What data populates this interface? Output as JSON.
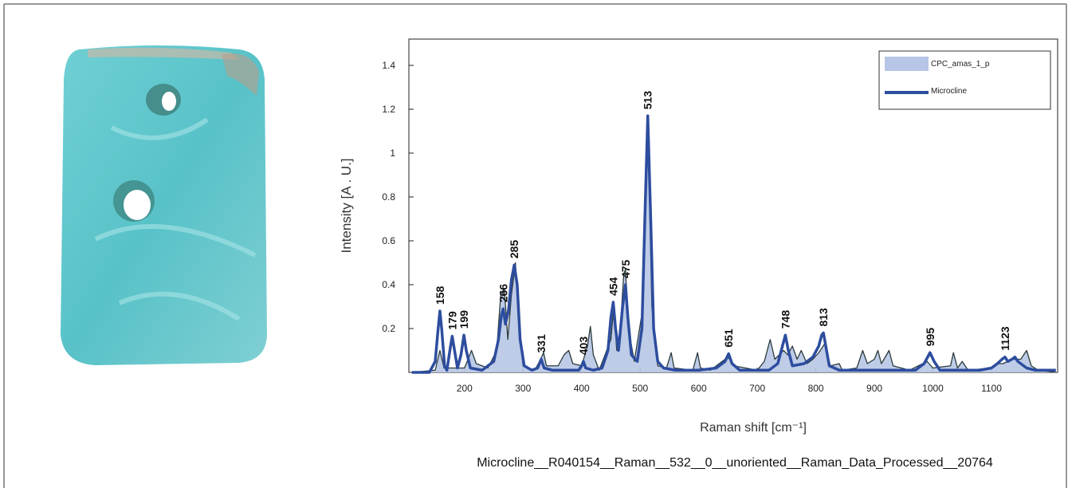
{
  "chart_data": {
    "type": "line",
    "x_label": "Raman shift [cm⁻¹]",
    "y_label": "Intensity [A . U.]",
    "caption": "Microcline__R040154__Raman__532__0__unoriented__Raman_Data_Processed__20764",
    "xlim": [
      105,
      1213
    ],
    "ylim": [
      0,
      1.52
    ],
    "xticks": [
      200,
      300,
      400,
      500,
      600,
      700,
      800,
      900,
      1000,
      1100
    ],
    "yticks": [
      0.2,
      0.4,
      0.6,
      0.8,
      1,
      1.2,
      1.4
    ],
    "legend": "upper right",
    "peak_labels": [
      158,
      179,
      199,
      266,
      285,
      331,
      403,
      454,
      475,
      513,
      651,
      748,
      813,
      995,
      1123
    ],
    "series": [
      {
        "name": "CPC_amas_1_p",
        "color": "#b7c6e6",
        "edge_color": "#2b3b3b",
        "filled": true,
        "x": [
          110,
          150,
          158,
          165,
          200,
          212,
          220,
          240,
          255,
          262,
          268,
          274,
          280,
          287,
          293,
          300,
          320,
          330,
          335,
          340,
          360,
          370,
          378,
          385,
          400,
          410,
          415,
          420,
          430,
          450,
          455,
          460,
          465,
          472,
          475,
          480,
          490,
          505,
          513,
          520,
          530,
          545,
          553,
          558,
          590,
          598,
          603,
          620,
          640,
          650,
          660,
          700,
          712,
          722,
          730,
          745,
          752,
          760,
          768,
          775,
          785,
          795,
          805,
          815,
          825,
          840,
          845,
          870,
          880,
          888,
          900,
          906,
          912,
          925,
          932,
          960,
          990,
          1000,
          1030,
          1035,
          1042,
          1050,
          1060,
          1100,
          1110,
          1120,
          1135,
          1150,
          1160,
          1168,
          1180,
          1210
        ],
        "values": [
          0,
          0.01,
          0.1,
          0.02,
          0.02,
          0.1,
          0.04,
          0.02,
          0.1,
          0.36,
          0.38,
          0.15,
          0.35,
          0.5,
          0.2,
          0.03,
          0.01,
          0.06,
          0.09,
          0.03,
          0.03,
          0.08,
          0.1,
          0.04,
          0.03,
          0.12,
          0.21,
          0.08,
          0.01,
          0.15,
          0.3,
          0.1,
          0.15,
          0.45,
          0.47,
          0.2,
          0.05,
          0.3,
          1.15,
          0.3,
          0.03,
          0.02,
          0.09,
          0.02,
          0.01,
          0.09,
          0.02,
          0.01,
          0.05,
          0.07,
          0.03,
          0.01,
          0.05,
          0.15,
          0.06,
          0.1,
          0.08,
          0.12,
          0.06,
          0.1,
          0.04,
          0.06,
          0.09,
          0.13,
          0.03,
          0.04,
          0.01,
          0.02,
          0.1,
          0.04,
          0.06,
          0.1,
          0.04,
          0.1,
          0.03,
          0.01,
          0.05,
          0.02,
          0.03,
          0.09,
          0.02,
          0.05,
          0.01,
          0.02,
          0.04,
          0.04,
          0.06,
          0.06,
          0.1,
          0.03,
          0.01,
          0
        ]
      },
      {
        "name": "Microcline",
        "color": "#2d4d9e",
        "filled": false,
        "x": [
          110,
          140,
          150,
          155,
          158,
          161,
          166,
          170,
          175,
          179,
          183,
          188,
          194,
          199,
          203,
          210,
          230,
          250,
          258,
          263,
          266,
          270,
          275,
          280,
          285,
          290,
          295,
          302,
          315,
          325,
          331,
          336,
          350,
          370,
          395,
          400,
          403,
          407,
          420,
          435,
          445,
          450,
          454,
          458,
          463,
          470,
          475,
          479,
          485,
          495,
          503,
          508,
          513,
          518,
          523,
          530,
          540,
          560,
          600,
          630,
          645,
          651,
          657,
          670,
          720,
          735,
          743,
          748,
          753,
          760,
          780,
          795,
          805,
          810,
          813,
          817,
          823,
          840,
          900,
          970,
          985,
          995,
          1002,
          1012,
          1080,
          1100,
          1110,
          1118,
          1123,
          1128,
          1135,
          1140,
          1145,
          1150,
          1160,
          1175,
          1210
        ],
        "values": [
          0,
          0,
          0.05,
          0.2,
          0.28,
          0.2,
          0.03,
          0.01,
          0.1,
          0.165,
          0.1,
          0.02,
          0.08,
          0.17,
          0.1,
          0.02,
          0.01,
          0.05,
          0.15,
          0.26,
          0.29,
          0.22,
          0.28,
          0.42,
          0.49,
          0.4,
          0.15,
          0.03,
          0.01,
          0.02,
          0.06,
          0.02,
          0.01,
          0.01,
          0.01,
          0.03,
          0.05,
          0.02,
          0.01,
          0.02,
          0.1,
          0.25,
          0.32,
          0.2,
          0.1,
          0.3,
          0.4,
          0.25,
          0.08,
          0.05,
          0.2,
          0.7,
          1.17,
          0.7,
          0.2,
          0.05,
          0.02,
          0.01,
          0.01,
          0.02,
          0.05,
          0.085,
          0.04,
          0.01,
          0.01,
          0.04,
          0.12,
          0.17,
          0.1,
          0.03,
          0.04,
          0.07,
          0.12,
          0.17,
          0.18,
          0.12,
          0.03,
          0.01,
          0.01,
          0.01,
          0.04,
          0.09,
          0.05,
          0.01,
          0.01,
          0.02,
          0.04,
          0.06,
          0.07,
          0.05,
          0.06,
          0.07,
          0.05,
          0.04,
          0.02,
          0.01,
          0.01
        ]
      }
    ]
  }
}
